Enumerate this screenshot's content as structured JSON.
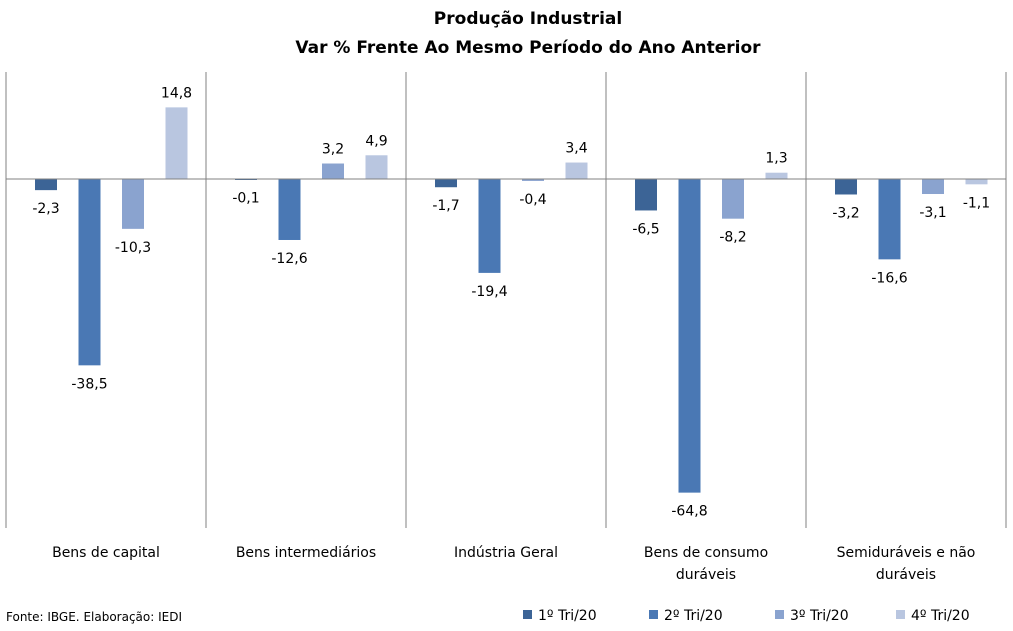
{
  "chart_data": {
    "type": "bar",
    "title": "Produção Industrial",
    "subtitle": "Var % Frente Ao Mesmo Período do Ano Anterior",
    "categories": [
      [
        "Bens de capital"
      ],
      [
        "Bens intermediários"
      ],
      [
        "Indústria Geral"
      ],
      [
        "Bens de consumo",
        "duráveis"
      ],
      [
        "Semiduráveis e não",
        "duráveis"
      ]
    ],
    "series": [
      {
        "name": "1º Tri/20",
        "color": "#3c6496",
        "values": [
          -2.3,
          -0.1,
          -1.7,
          -6.5,
          -3.2
        ]
      },
      {
        "name": "2º Tri/20",
        "color": "#4a78b4",
        "values": [
          -38.5,
          -12.6,
          -19.4,
          -64.8,
          -16.6
        ]
      },
      {
        "name": "3º Tri/20",
        "color": "#8aa3cf",
        "values": [
          -10.3,
          3.2,
          -0.4,
          -8.2,
          -3.1
        ]
      },
      {
        "name": "4º Tri/20",
        "color": "#b9c6e0",
        "values": [
          14.8,
          4.9,
          3.4,
          1.3,
          -1.1
        ]
      }
    ],
    "data_labels": [
      [
        "-2,3",
        "-0,1",
        "-1,7",
        "-6,5",
        "-3,2"
      ],
      [
        "-38,5",
        "-12,6",
        "-19,4",
        "-64,8",
        "-16,6"
      ],
      [
        "-10,3",
        "3,2",
        "-0,4",
        "-8,2",
        "-3,1"
      ],
      [
        "14,8",
        "4,9",
        "3,4",
        "1,3",
        "-1,1"
      ]
    ],
    "ylim": [
      -70,
      22
    ],
    "grid": false,
    "legend_position": "bottom-right"
  },
  "source": "Fonte: IBGE. Elaboração: IEDI"
}
